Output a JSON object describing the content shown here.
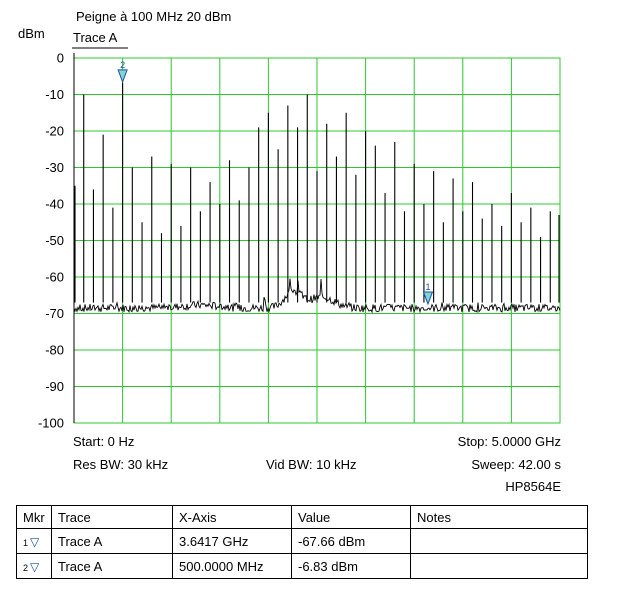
{
  "chart_data": {
    "type": "line",
    "title": "Peigne à 100 MHz 20 dBm",
    "trace_label": "Trace A",
    "ylabel": "dBm",
    "ylim": [
      -100,
      0
    ],
    "xlim_ghz": [
      0,
      5.0
    ],
    "y_ticks": [
      "0",
      "-10",
      "-20",
      "-30",
      "-40",
      "-50",
      "-60",
      "-70",
      "-80",
      "-90",
      "-100"
    ],
    "grid": true,
    "noise_floor_dbm": -68.5,
    "series": [
      {
        "name": "Trace A",
        "peaks": [
          {
            "x_ghz": 0.0,
            "dbm": -35
          },
          {
            "x_ghz": 0.1,
            "dbm": -10
          },
          {
            "x_ghz": 0.2,
            "dbm": -36
          },
          {
            "x_ghz": 0.3,
            "dbm": -21
          },
          {
            "x_ghz": 0.4,
            "dbm": -41
          },
          {
            "x_ghz": 0.5,
            "dbm": -6.83
          },
          {
            "x_ghz": 0.6,
            "dbm": -30
          },
          {
            "x_ghz": 0.7,
            "dbm": -45
          },
          {
            "x_ghz": 0.8,
            "dbm": -27
          },
          {
            "x_ghz": 0.9,
            "dbm": -48
          },
          {
            "x_ghz": 1.0,
            "dbm": -29
          },
          {
            "x_ghz": 1.1,
            "dbm": -46
          },
          {
            "x_ghz": 1.2,
            "dbm": -30
          },
          {
            "x_ghz": 1.3,
            "dbm": -42
          },
          {
            "x_ghz": 1.4,
            "dbm": -34
          },
          {
            "x_ghz": 1.5,
            "dbm": -40
          },
          {
            "x_ghz": 1.6,
            "dbm": -28
          },
          {
            "x_ghz": 1.7,
            "dbm": -39
          },
          {
            "x_ghz": 1.8,
            "dbm": -30
          },
          {
            "x_ghz": 1.9,
            "dbm": -19
          },
          {
            "x_ghz": 2.0,
            "dbm": -15
          },
          {
            "x_ghz": 2.1,
            "dbm": -25
          },
          {
            "x_ghz": 2.2,
            "dbm": -13
          },
          {
            "x_ghz": 2.3,
            "dbm": -19
          },
          {
            "x_ghz": 2.4,
            "dbm": -10
          },
          {
            "x_ghz": 2.5,
            "dbm": -31
          },
          {
            "x_ghz": 2.6,
            "dbm": -18
          },
          {
            "x_ghz": 2.7,
            "dbm": -27
          },
          {
            "x_ghz": 2.8,
            "dbm": -15
          },
          {
            "x_ghz": 2.9,
            "dbm": -32
          },
          {
            "x_ghz": 3.0,
            "dbm": -20
          },
          {
            "x_ghz": 3.1,
            "dbm": -24
          },
          {
            "x_ghz": 3.2,
            "dbm": -37
          },
          {
            "x_ghz": 3.3,
            "dbm": -23
          },
          {
            "x_ghz": 3.4,
            "dbm": -42
          },
          {
            "x_ghz": 3.5,
            "dbm": -29
          },
          {
            "x_ghz": 3.6,
            "dbm": -40
          },
          {
            "x_ghz": 3.7,
            "dbm": -31
          },
          {
            "x_ghz": 3.8,
            "dbm": -45
          },
          {
            "x_ghz": 3.9,
            "dbm": -33
          },
          {
            "x_ghz": 4.0,
            "dbm": -42
          },
          {
            "x_ghz": 4.1,
            "dbm": -34
          },
          {
            "x_ghz": 4.2,
            "dbm": -44
          },
          {
            "x_ghz": 4.3,
            "dbm": -40
          },
          {
            "x_ghz": 4.4,
            "dbm": -46
          },
          {
            "x_ghz": 4.5,
            "dbm": -37
          },
          {
            "x_ghz": 4.6,
            "dbm": -45
          },
          {
            "x_ghz": 4.7,
            "dbm": -41
          },
          {
            "x_ghz": 4.8,
            "dbm": -49
          },
          {
            "x_ghz": 4.9,
            "dbm": -42
          },
          {
            "x_ghz": 5.0,
            "dbm": -43
          }
        ]
      }
    ],
    "markers": [
      {
        "id": "1",
        "x_ghz": 3.6417,
        "dbm": -67.66
      },
      {
        "id": "2",
        "x_ghz": 0.5,
        "dbm": -6.83
      }
    ],
    "colors": {
      "grid": "#2ec82e",
      "trace": "#000000",
      "marker": "#1e4fa0",
      "marker_fill": "#7fd6d6"
    }
  },
  "annotations": {
    "start": "Start: 0 Hz",
    "stop": "Stop: 5.0000 GHz",
    "res_bw": "Res BW: 30 kHz",
    "vid_bw": "Vid BW: 10 kHz",
    "sweep": "Sweep: 42.00 s",
    "instrument": "HP8564E"
  },
  "marker_table": {
    "headers": [
      "Mkr",
      "Trace",
      "X-Axis",
      "Value",
      "Notes"
    ],
    "rows": [
      {
        "mkr": "1",
        "trace": "Trace A",
        "x_axis": "3.6417 GHz",
        "value": "-67.66 dBm",
        "notes": ""
      },
      {
        "mkr": "2",
        "trace": "Trace A",
        "x_axis": "500.0000 MHz",
        "value": "-6.83 dBm",
        "notes": ""
      }
    ]
  }
}
